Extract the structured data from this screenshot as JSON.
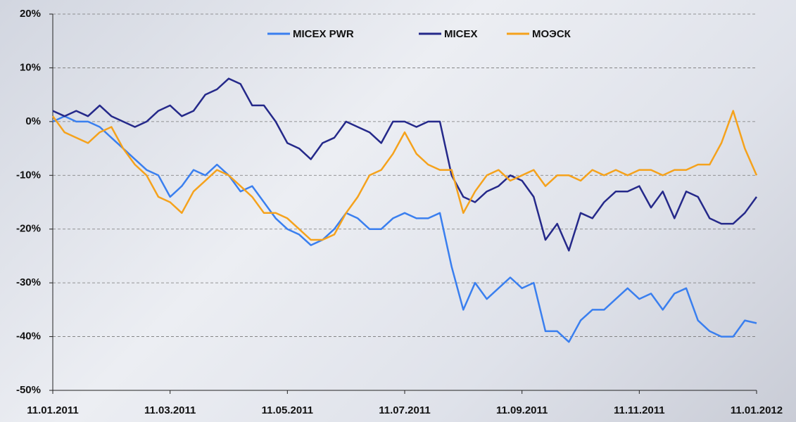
{
  "chart_data": {
    "type": "line",
    "categories": [
      "11.01.2011",
      null,
      null,
      null,
      null,
      null,
      null,
      null,
      null,
      null,
      "11.03.2011",
      null,
      null,
      null,
      null,
      null,
      null,
      null,
      null,
      null,
      "11.05.2011",
      null,
      null,
      null,
      null,
      null,
      null,
      null,
      null,
      null,
      "11.07.2011",
      null,
      null,
      null,
      null,
      null,
      null,
      null,
      null,
      null,
      "11.09.2011",
      null,
      null,
      null,
      null,
      null,
      null,
      null,
      null,
      null,
      "11.11.2011",
      null,
      null,
      null,
      null,
      null,
      null,
      null,
      null,
      null,
      "11.01.2012"
    ],
    "series": [
      {
        "name": "MICEX PWR",
        "color": "#3a7fef",
        "values": [
          0,
          1,
          0,
          0,
          -1,
          -3,
          -5,
          -7,
          -9,
          -10,
          -14,
          -12,
          -9,
          -10,
          -8,
          -10,
          -13,
          -12,
          -15,
          -18,
          -20,
          -21,
          -23,
          -22,
          -20,
          -17,
          -18,
          -20,
          -20,
          -18,
          -17,
          -18,
          -18,
          -17,
          -27,
          -35,
          -30,
          -33,
          -31,
          -29,
          -31,
          -30,
          -39,
          -39,
          -41,
          -37,
          -35,
          -35,
          -33,
          -31,
          -33,
          -32,
          -35,
          -32,
          -31,
          -37,
          -39,
          -40,
          -40,
          -37,
          -37.5
        ]
      },
      {
        "name": "MICEX",
        "color": "#25298a",
        "values": [
          2,
          1,
          2,
          1,
          3,
          1,
          0,
          -1,
          0,
          2,
          3,
          1,
          2,
          5,
          6,
          8,
          7,
          3,
          3,
          0,
          -4,
          -5,
          -7,
          -4,
          -3,
          0,
          -1,
          -2,
          -4,
          0,
          0,
          -1,
          0,
          0,
          -10,
          -14,
          -15,
          -13,
          -12,
          -10,
          -11,
          -14,
          -22,
          -19,
          -24,
          -17,
          -18,
          -15,
          -13,
          -13,
          -12,
          -16,
          -13,
          -18,
          -13,
          -14,
          -18,
          -19,
          -19,
          -17,
          -14
        ]
      },
      {
        "name": "МОЭСК",
        "color": "#f5a21c",
        "values": [
          1,
          -2,
          -3,
          -4,
          -2,
          -1,
          -5,
          -8,
          -10,
          -14,
          -15,
          -17,
          -13,
          -11,
          -9,
          -10,
          -12,
          -14,
          -17,
          -17,
          -18,
          -20,
          -22,
          -22,
          -21,
          -17,
          -14,
          -10,
          -9,
          -6,
          -2,
          -6,
          -8,
          -9,
          -9,
          -17,
          -13,
          -10,
          -9,
          -11,
          -10,
          -9,
          -12,
          -10,
          -10,
          -11,
          -9,
          -10,
          -9,
          -10,
          -9,
          -9,
          -10,
          -9,
          -9,
          -8,
          -8,
          -4,
          2,
          -5,
          -10
        ]
      }
    ],
    "ylim": [
      -50,
      20
    ],
    "yticks": [
      {
        "value": -50,
        "label": "-50%"
      },
      {
        "value": -40,
        "label": "-40%"
      },
      {
        "value": -30,
        "label": "-30%"
      },
      {
        "value": -20,
        "label": "-20%"
      },
      {
        "value": -10,
        "label": "-10%"
      },
      {
        "value": 0,
        "label": "0%"
      },
      {
        "value": 10,
        "label": "10%"
      },
      {
        "value": 20,
        "label": "20%"
      }
    ],
    "grid": true
  }
}
